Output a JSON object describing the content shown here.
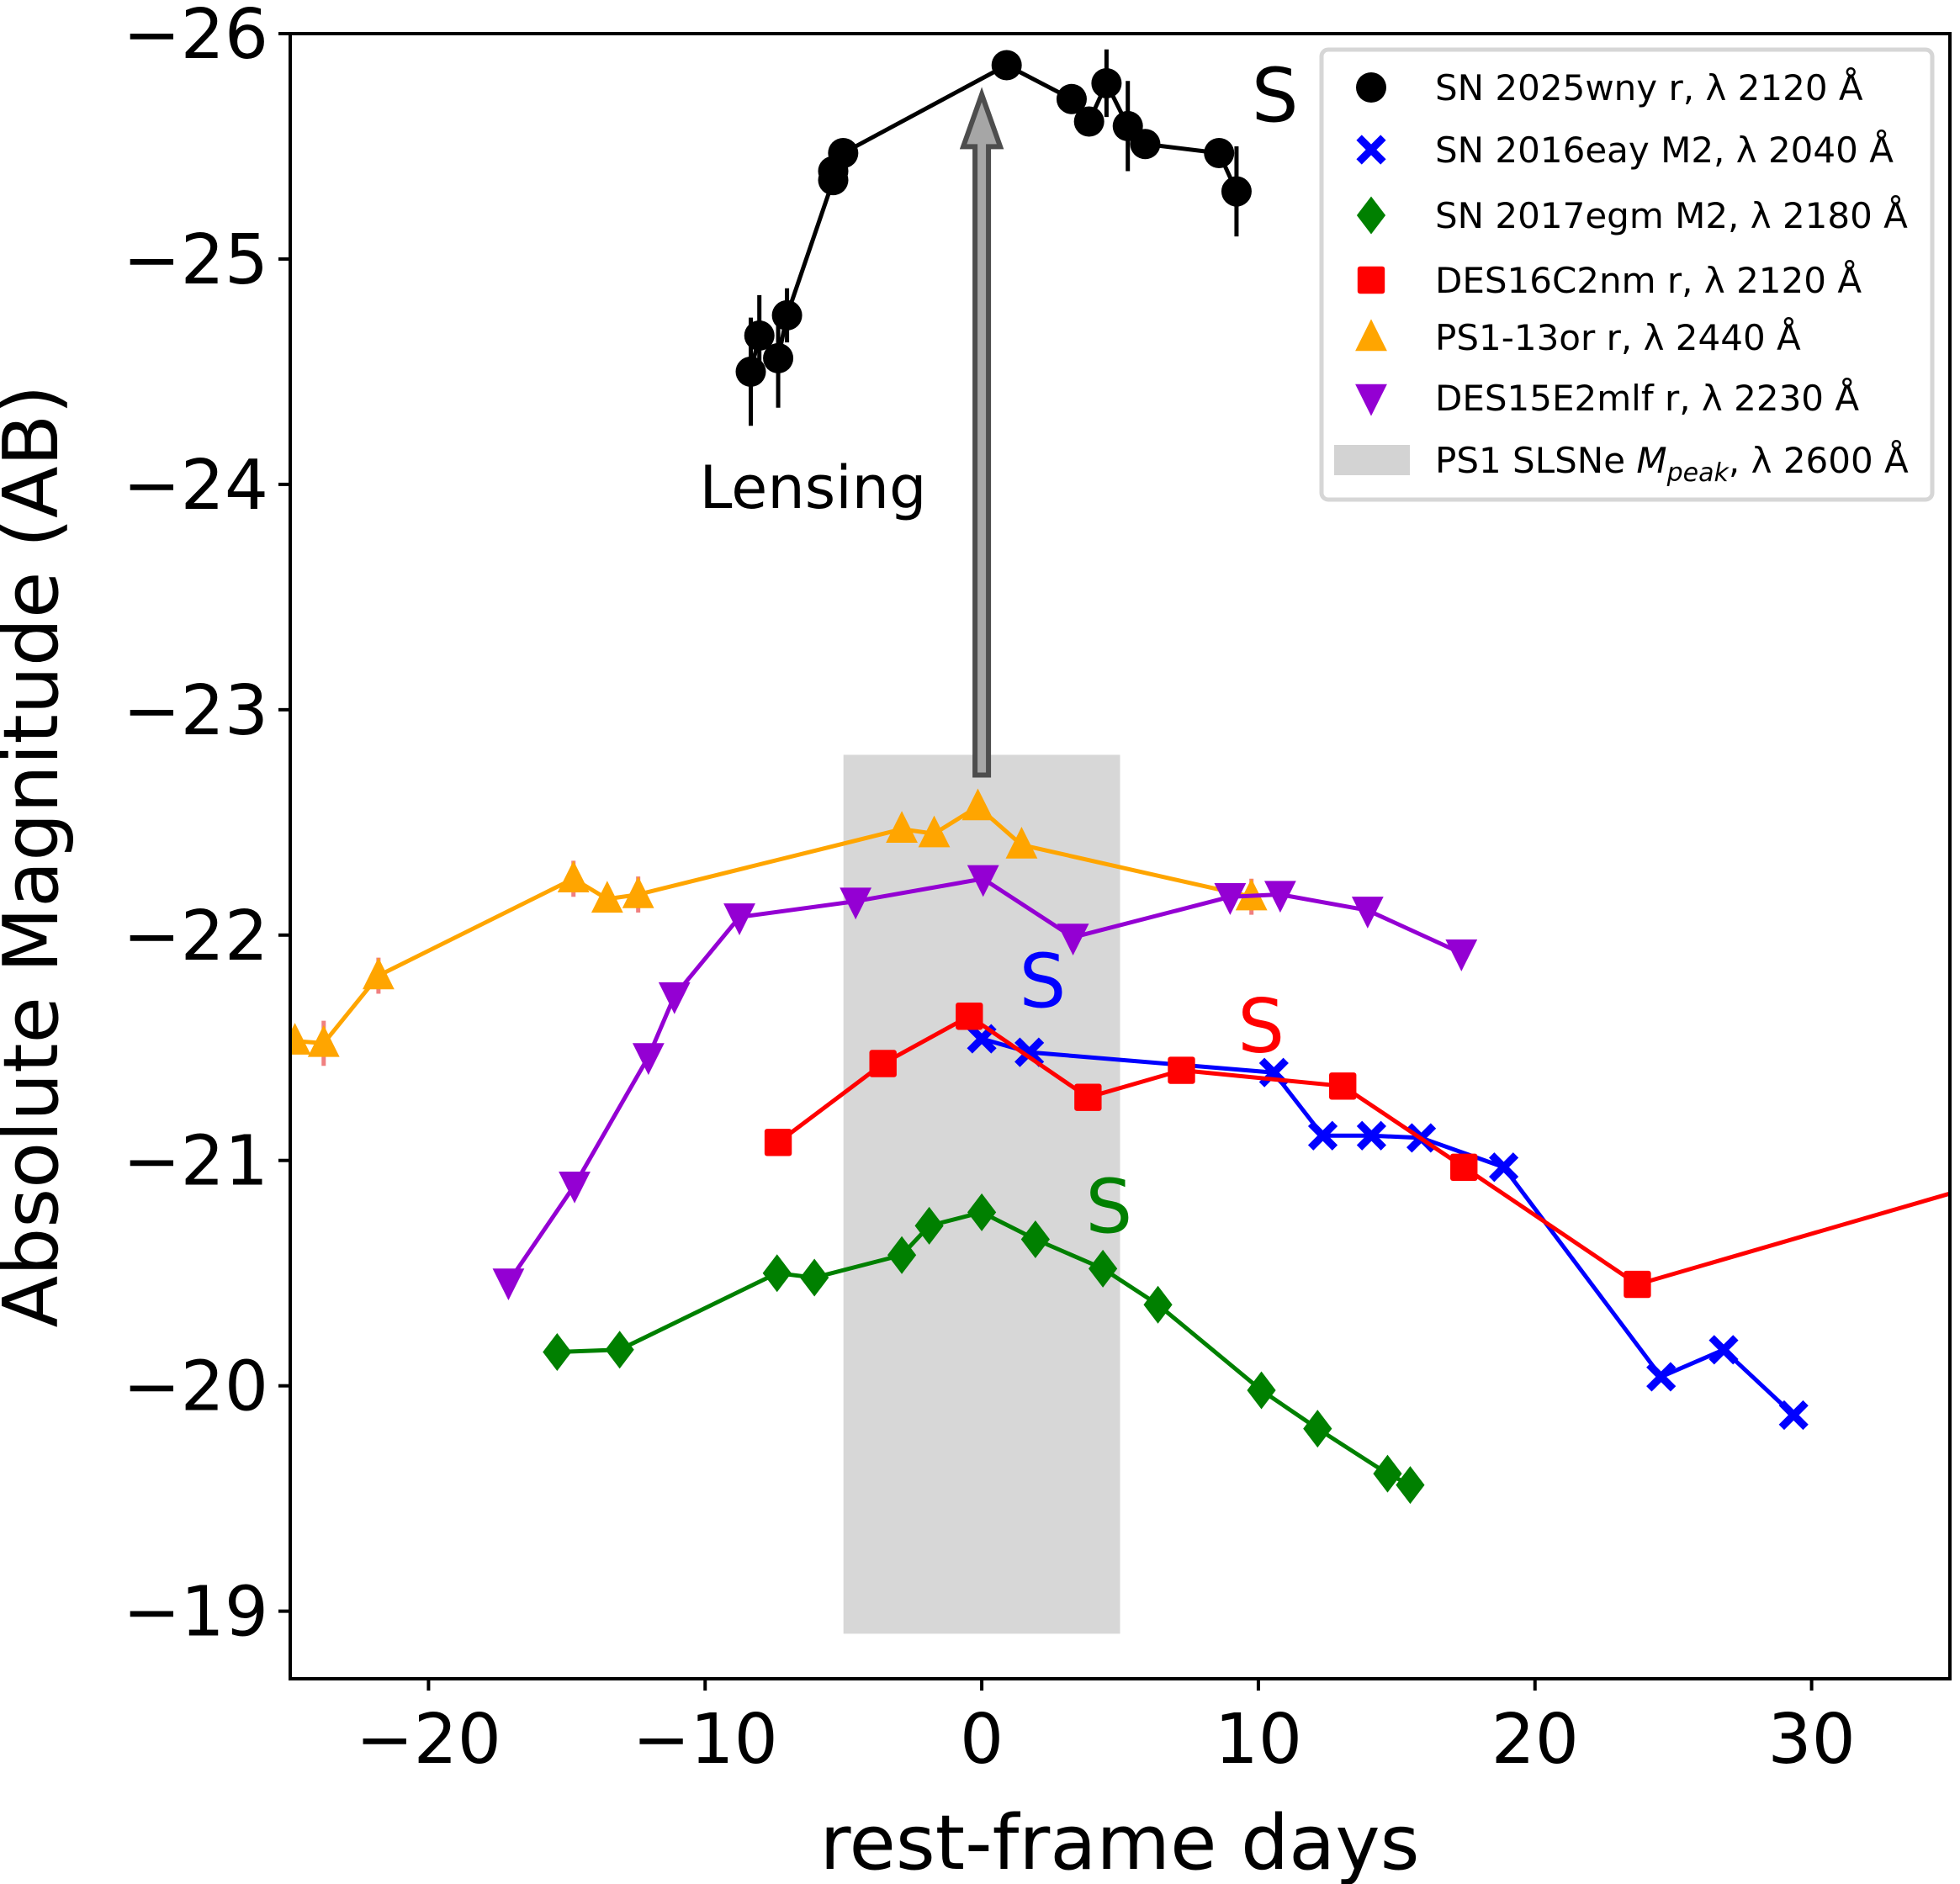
{
  "chart_data": {
    "type": "line",
    "title": "",
    "xlabel": "rest-frame days",
    "ylabel": "Absolute Magnitude (AB)",
    "xlim": [
      -25,
      35
    ],
    "ylim": [
      -18.7,
      -26
    ],
    "y_inverted": true,
    "grid": false,
    "legend_placement": "top-right",
    "xticks": [
      -20,
      -10,
      0,
      10,
      20,
      30
    ],
    "xtick_labels": [
      "−20",
      "−10",
      "0",
      "10",
      "20",
      "30"
    ],
    "yticks": [
      -26,
      -25,
      -24,
      -23,
      -22,
      -21,
      -20,
      -19
    ],
    "ytick_labels": [
      "−26",
      "−25",
      "−24",
      "−23",
      "−22",
      "−21",
      "−20",
      "−19"
    ],
    "series": [
      {
        "name": "SN 2025wny r, λ 2120 Å",
        "color": "#000000",
        "marker": "circle",
        "x": [
          -8.35,
          -8.04,
          -7.36,
          -7.04,
          -5.37,
          -5.37,
          -5.01,
          0.9,
          3.25,
          3.88,
          4.51,
          5.28,
          5.91,
          8.58,
          9.21
        ],
        "y": [
          -24.5,
          -24.66,
          -24.56,
          -24.75,
          -25.35,
          -25.39,
          -25.47,
          -25.86,
          -25.71,
          -25.61,
          -25.78,
          -25.59,
          -25.51,
          -25.47,
          -25.3
        ],
        "yerr": [
          0.24,
          0.18,
          0.22,
          0.12,
          0.06,
          0.05,
          0.05,
          0,
          0,
          0,
          0.15,
          0.2,
          0.06,
          0.04,
          0.2
        ]
      },
      {
        "name": "SN 2016eay M2, λ 2040 Å",
        "color": "#0000ff",
        "marker": "x",
        "x": [
          0,
          1.72,
          10.56,
          12.33,
          14.09,
          15.89,
          18.87,
          24.56,
          26.82,
          29.35
        ],
        "y": [
          -21.54,
          -21.48,
          -21.39,
          -21.11,
          -21.11,
          -21.1,
          -20.97,
          -20.04,
          -20.16,
          -19.87
        ]
      },
      {
        "name": "SN 2017egm M2, λ 2180 Å",
        "color": "#008000",
        "marker": "diamond",
        "x": [
          -15.35,
          -13.09,
          -7.4,
          -6.05,
          -2.89,
          -1.9,
          0,
          1.94,
          4.38,
          6.37,
          10.11,
          12.14,
          14.67,
          15.49
        ],
        "y": [
          -20.15,
          -20.16,
          -20.5,
          -20.48,
          -20.58,
          -20.71,
          -20.77,
          -20.65,
          -20.52,
          -20.36,
          -19.98,
          -19.81,
          -19.61,
          -19.56
        ]
      },
      {
        "name": "DES16C2nm r, λ 2120 Å",
        "color": "#ff0000",
        "marker": "square",
        "x": [
          -7.36,
          -3.57,
          -0.45,
          3.84,
          7.22,
          13.05,
          17.43,
          23.7,
          38
        ],
        "y": [
          -21.08,
          -21.43,
          -21.64,
          -21.28,
          -21.4,
          -21.33,
          -20.97,
          -20.45,
          -20.96
        ]
      },
      {
        "name": "PS1-13or r, λ 2440 Å",
        "color": "#ffa500",
        "errcolor": "#f08080",
        "marker": "triangle-up",
        "x": [
          -24.83,
          -23.79,
          -21.81,
          -14.76,
          -13.54,
          -12.42,
          -2.89,
          -1.72,
          -0.14,
          1.44,
          9.75
        ],
        "y": [
          -21.53,
          -21.52,
          -21.82,
          -22.25,
          -22.16,
          -22.18,
          -22.47,
          -22.45,
          -22.57,
          -22.4,
          -22.17
        ],
        "yerr": [
          0.05,
          0.1,
          0.08,
          0.08,
          0.04,
          0.08,
          0.04,
          0.05,
          0.05,
          0.04,
          0.08
        ]
      },
      {
        "name": "DES15E2mlf r, λ 2230 Å",
        "color": "#9400d3",
        "marker": "triangle-down",
        "x": [
          -17.11,
          -14.72,
          -12.05,
          -11.11,
          -8.76,
          -4.56,
          0.05,
          3.3,
          8.98,
          10.79,
          13.95,
          17.34
        ],
        "y": [
          -20.46,
          -20.89,
          -21.46,
          -21.73,
          -22.08,
          -22.15,
          -22.25,
          -21.99,
          -22.17,
          -22.18,
          -22.11,
          -21.92
        ]
      }
    ],
    "band": {
      "name": "PS1 SLSNe M",
      "name_sub": "peak",
      "name_suffix": ", λ 2600 Å",
      "color": "#d3d3d3",
      "x": [
        -5,
        5
      ],
      "y": [
        -22.8,
        -18.9
      ]
    },
    "annotations": {
      "lensing": {
        "text": "Lensing",
        "x": -6.1,
        "y": -24.0
      },
      "arrow": {
        "x": 0,
        "y_from": -22.71,
        "y_to": -25.73,
        "fill": "#a6a6a6",
        "edge": "#4d4d4d"
      },
      "s_labels": [
        {
          "text": "S",
          "color": "#000000",
          "x": 10.6,
          "y": -25.73
        },
        {
          "text": "S",
          "color": "#0000ff",
          "x": 2.2,
          "y": -21.8
        },
        {
          "text": "S",
          "color": "#ff0000",
          "x": 10.1,
          "y": -21.6
        },
        {
          "text": "S",
          "color": "#008000",
          "x": 4.6,
          "y": -20.8
        }
      ]
    }
  }
}
